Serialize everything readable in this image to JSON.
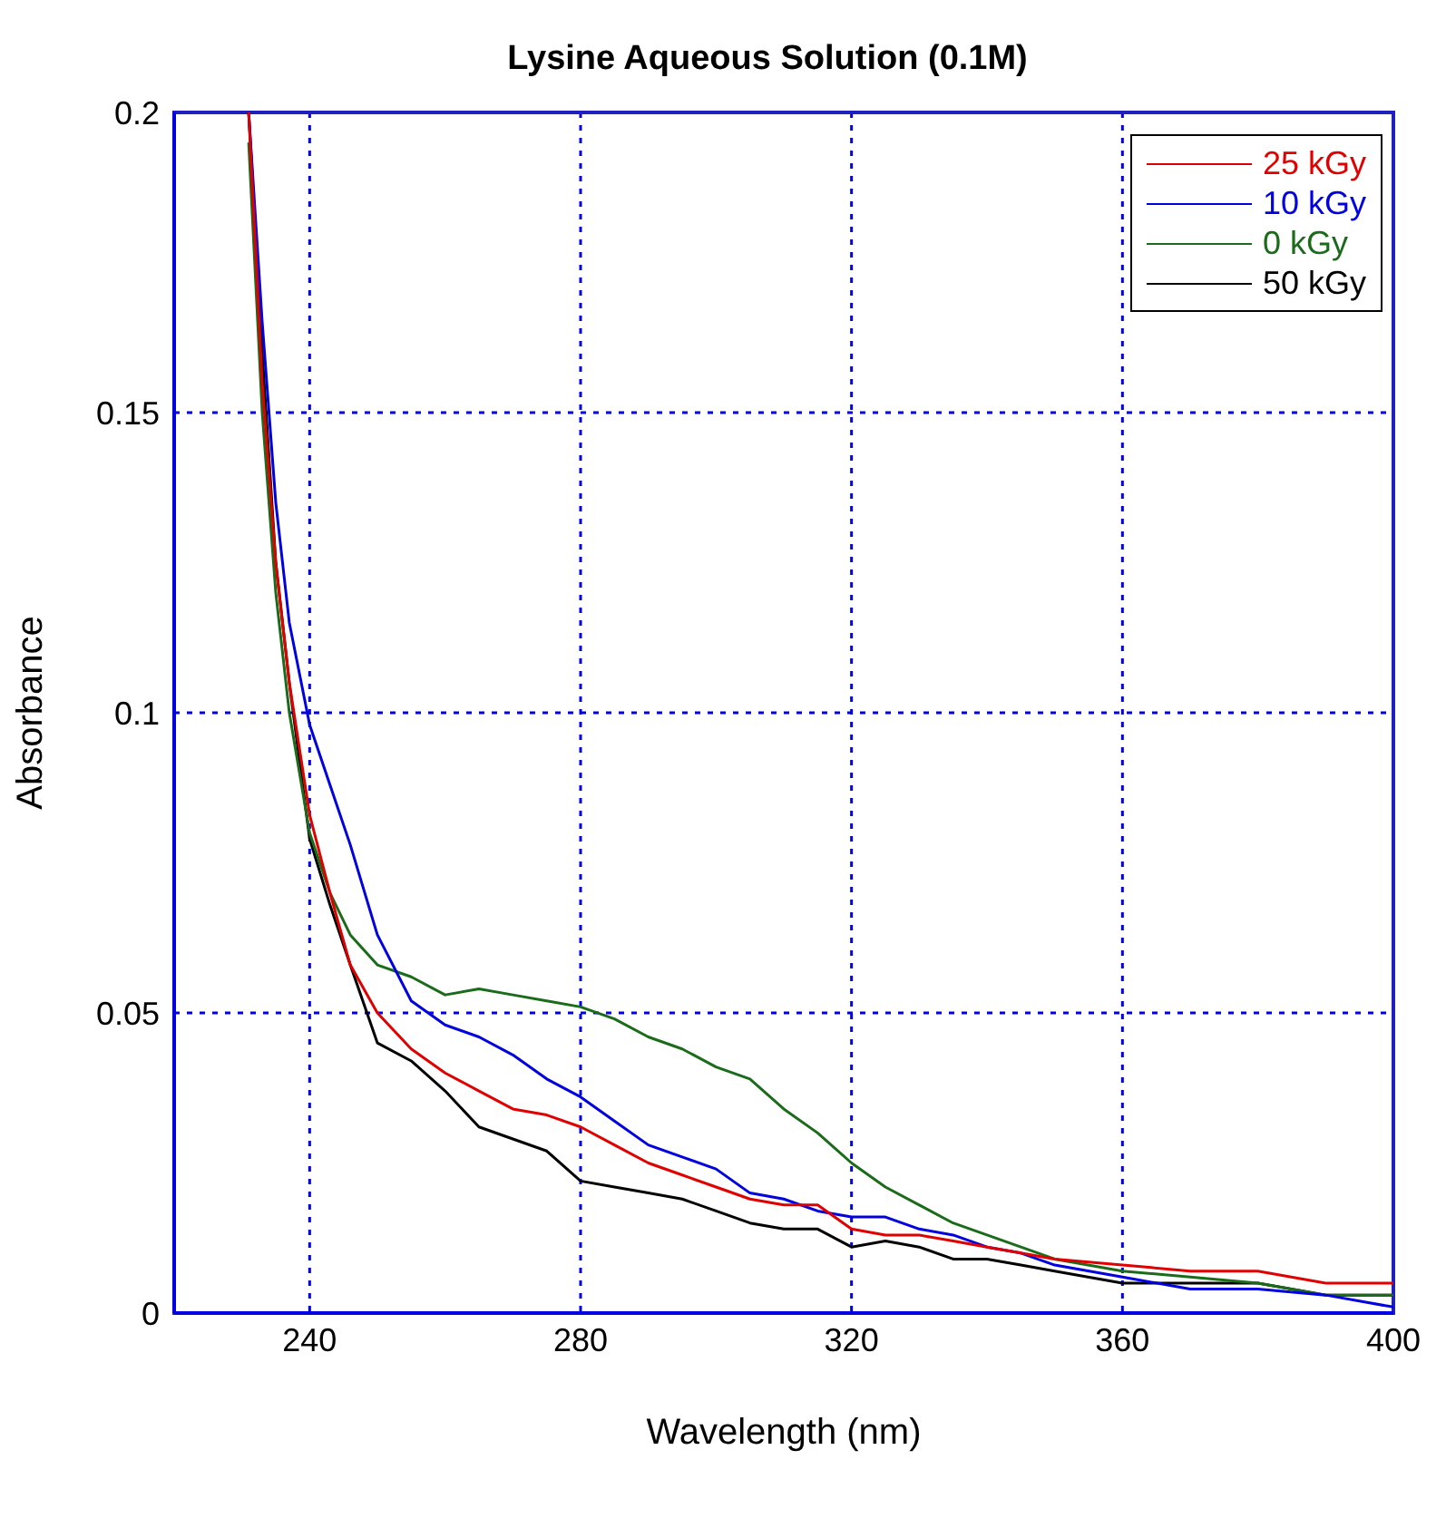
{
  "chart_data": {
    "type": "line",
    "title": "Lysine Aqueous Solution (0.1M)",
    "xlabel": "Wavelength (nm)",
    "ylabel": "Absorbance",
    "x": [
      231,
      233,
      235,
      237,
      240,
      243,
      246,
      250,
      255,
      260,
      265,
      270,
      275,
      280,
      285,
      290,
      295,
      300,
      305,
      310,
      315,
      320,
      325,
      330,
      335,
      340,
      345,
      350,
      360,
      370,
      380,
      390,
      400
    ],
    "series": [
      {
        "name": "25 kGy",
        "color": "#e00000",
        "values": [
          0.2,
          0.155,
          0.125,
          0.105,
          0.083,
          0.07,
          0.058,
          0.05,
          0.044,
          0.04,
          0.037,
          0.034,
          0.033,
          0.031,
          0.028,
          0.025,
          0.023,
          0.021,
          0.019,
          0.018,
          0.018,
          0.014,
          0.013,
          0.013,
          0.012,
          0.011,
          0.01,
          0.009,
          0.008,
          0.007,
          0.007,
          0.005,
          0.005
        ]
      },
      {
        "name": "10 kGy",
        "color": "#0000e0",
        "values": [
          0.2,
          0.165,
          0.135,
          0.115,
          0.098,
          0.088,
          0.078,
          0.063,
          0.052,
          0.048,
          0.046,
          0.043,
          0.039,
          0.036,
          0.032,
          0.028,
          0.026,
          0.024,
          0.02,
          0.019,
          0.017,
          0.016,
          0.016,
          0.014,
          0.013,
          0.011,
          0.01,
          0.008,
          0.006,
          0.004,
          0.004,
          0.003,
          0.001
        ]
      },
      {
        "name": "0 kGy",
        "color": "#1a6b1a",
        "values": [
          0.195,
          0.15,
          0.12,
          0.1,
          0.08,
          0.07,
          0.063,
          0.058,
          0.056,
          0.053,
          0.054,
          0.053,
          0.052,
          0.051,
          0.049,
          0.046,
          0.044,
          0.041,
          0.039,
          0.034,
          0.03,
          0.025,
          0.021,
          0.018,
          0.015,
          0.013,
          0.011,
          0.009,
          0.007,
          0.006,
          0.005,
          0.003,
          0.003
        ]
      },
      {
        "name": "50 kGy",
        "color": "#000000",
        "values": [
          0.2,
          0.16,
          0.125,
          0.105,
          0.079,
          0.068,
          0.058,
          0.045,
          0.042,
          0.037,
          0.031,
          0.029,
          0.027,
          0.022,
          0.021,
          0.02,
          0.019,
          0.017,
          0.015,
          0.014,
          0.014,
          0.011,
          0.012,
          0.011,
          0.009,
          0.009,
          0.008,
          0.007,
          0.005,
          0.005,
          0.005,
          0.003,
          0.003
        ]
      }
    ],
    "xlim": [
      220,
      400
    ],
    "xticks": [
      240,
      280,
      320,
      360,
      400
    ],
    "ylim": [
      0,
      0.2
    ],
    "yticks": [
      0,
      0.05,
      0.1,
      0.15,
      0.2
    ],
    "grid": true,
    "legend": "top right",
    "line_style": "solid"
  }
}
